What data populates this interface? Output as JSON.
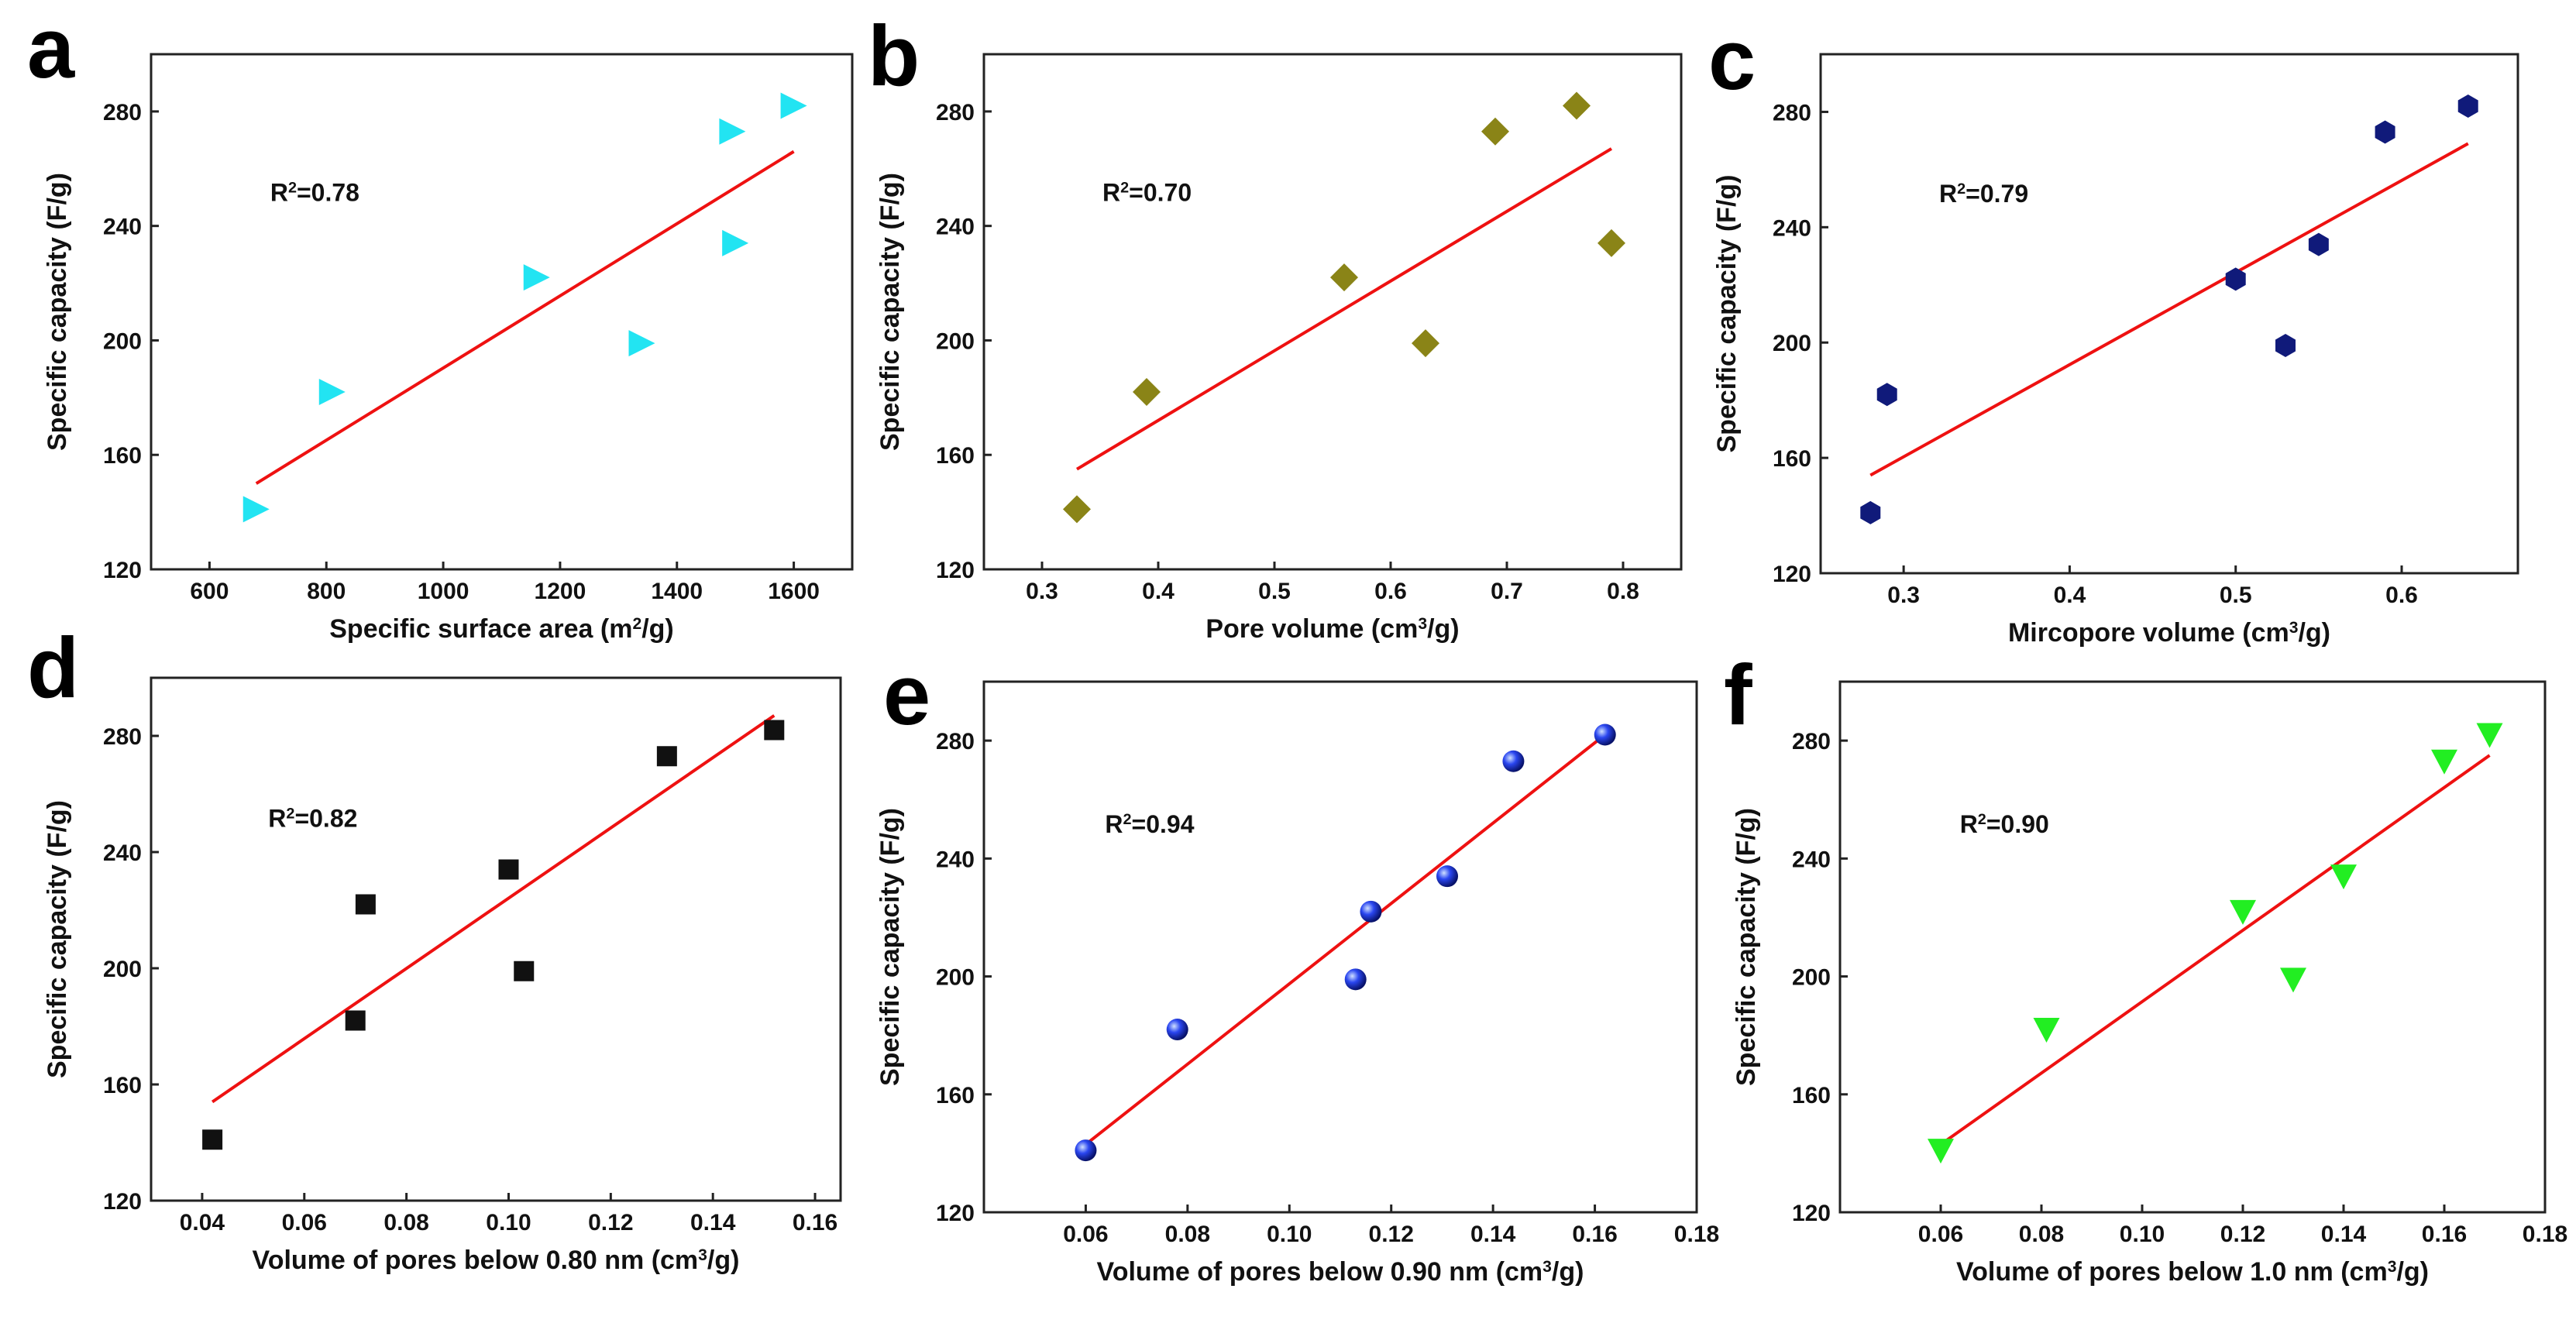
{
  "chart_data": [
    {
      "panel": "a",
      "type": "scatter",
      "marker": "triangle-right",
      "color": "#22e4f2",
      "xlabel": "Specific surface area (m{sup:2}/g)",
      "ylabel": "Specific capacity (F/g)",
      "annotation": "R{sup:2}=0.78",
      "xlim": [
        500,
        1700
      ],
      "ylim": [
        120,
        300
      ],
      "xticks": [
        "600",
        "800",
        "1000",
        "1200",
        "1400",
        "1600"
      ],
      "yticks": [
        "120",
        "160",
        "200",
        "240",
        "280"
      ],
      "points": [
        [
          680,
          141
        ],
        [
          810,
          182
        ],
        [
          1160,
          222
        ],
        [
          1340,
          199
        ],
        [
          1500,
          234
        ],
        [
          1495,
          273
        ],
        [
          1600,
          282
        ]
      ],
      "fit": [
        [
          680,
          150
        ],
        [
          1600,
          266
        ]
      ]
    },
    {
      "panel": "b",
      "type": "scatter",
      "marker": "diamond",
      "color": "#8a8417",
      "xlabel": "Pore volume (cm{sup:3}/g)",
      "ylabel": "Specific capacity (F/g)",
      "annotation": "R{sup:2}=0.70",
      "xlim": [
        0.25,
        0.85
      ],
      "ylim": [
        120,
        300
      ],
      "xticks": [
        "0.3",
        "0.4",
        "0.5",
        "0.6",
        "0.7",
        "0.8"
      ],
      "yticks": [
        "120",
        "160",
        "200",
        "240",
        "280"
      ],
      "points": [
        [
          0.33,
          141
        ],
        [
          0.39,
          182
        ],
        [
          0.56,
          222
        ],
        [
          0.63,
          199
        ],
        [
          0.69,
          273
        ],
        [
          0.76,
          282
        ],
        [
          0.79,
          234
        ]
      ],
      "fit": [
        [
          0.33,
          155
        ],
        [
          0.79,
          267
        ]
      ]
    },
    {
      "panel": "c",
      "type": "scatter",
      "marker": "hexagon",
      "color": "#101a7a",
      "xlabel": "Mircopore volume (cm{sup:3}/g)",
      "ylabel": "Specific capacity (F/g)",
      "annotation": "R{sup:2}=0.79",
      "xlim": [
        0.25,
        0.67
      ],
      "ylim": [
        120,
        300
      ],
      "xticks": [
        "0.3",
        "0.4",
        "0.5",
        "0.6"
      ],
      "yticks": [
        "120",
        "160",
        "200",
        "240",
        "280"
      ],
      "points": [
        [
          0.28,
          141
        ],
        [
          0.29,
          182
        ],
        [
          0.5,
          222
        ],
        [
          0.53,
          199
        ],
        [
          0.55,
          234
        ],
        [
          0.59,
          273
        ],
        [
          0.64,
          282
        ]
      ],
      "fit": [
        [
          0.28,
          154
        ],
        [
          0.64,
          269
        ]
      ]
    },
    {
      "panel": "d",
      "type": "scatter",
      "marker": "square",
      "color": "#111111",
      "xlabel": "Volume of pores below 0.80 nm (cm{sup:3}/g)",
      "ylabel": "Specific capacity (F/g)",
      "annotation": "R{sup:2}=0.82",
      "xlim": [
        0.03,
        0.165
      ],
      "ylim": [
        120,
        300
      ],
      "xticks": [
        "0.04",
        "0.06",
        "0.08",
        "0.10",
        "0.12",
        "0.14",
        "0.16"
      ],
      "yticks": [
        "120",
        "160",
        "200",
        "240",
        "280"
      ],
      "points": [
        [
          0.042,
          141
        ],
        [
          0.07,
          182
        ],
        [
          0.072,
          222
        ],
        [
          0.1,
          234
        ],
        [
          0.103,
          199
        ],
        [
          0.131,
          273
        ],
        [
          0.152,
          282
        ]
      ],
      "fit": [
        [
          0.042,
          154
        ],
        [
          0.152,
          287
        ]
      ]
    },
    {
      "panel": "e",
      "type": "scatter",
      "marker": "sphere",
      "color": "#1a2ee8",
      "xlabel": "Volume of pores below 0.90 nm (cm{sup:3}/g)",
      "ylabel": "Specific capacity (F/g)",
      "annotation": "R{sup:2}=0.94",
      "xlim": [
        0.04,
        0.18
      ],
      "ylim": [
        120,
        300
      ],
      "xticks": [
        "0.06",
        "0.08",
        "0.10",
        "0.12",
        "0.14",
        "0.16",
        "0.18"
      ],
      "yticks": [
        "120",
        "160",
        "200",
        "240",
        "280"
      ],
      "points": [
        [
          0.06,
          141
        ],
        [
          0.078,
          182
        ],
        [
          0.113,
          199
        ],
        [
          0.116,
          222
        ],
        [
          0.131,
          234
        ],
        [
          0.144,
          273
        ],
        [
          0.162,
          282
        ]
      ],
      "fit": [
        [
          0.06,
          143
        ],
        [
          0.162,
          282
        ]
      ]
    },
    {
      "panel": "f",
      "type": "scatter",
      "marker": "triangle-down",
      "color": "#22ee22",
      "xlabel": "Volume of pores below 1.0 nm (cm{sup:3}/g)",
      "ylabel": "Specific capacity (F/g)",
      "annotation": "R{sup:2}=0.90",
      "xlim": [
        0.04,
        0.18
      ],
      "ylim": [
        120,
        300
      ],
      "xticks": [
        "0.06",
        "0.08",
        "0.10",
        "0.12",
        "0.14",
        "0.16",
        "0.18"
      ],
      "yticks": [
        "120",
        "160",
        "200",
        "240",
        "280"
      ],
      "points": [
        [
          0.06,
          141
        ],
        [
          0.081,
          182
        ],
        [
          0.12,
          222
        ],
        [
          0.13,
          199
        ],
        [
          0.14,
          234
        ],
        [
          0.16,
          273
        ],
        [
          0.169,
          282
        ]
      ],
      "fit": [
        [
          0.06,
          143
        ],
        [
          0.169,
          275
        ]
      ]
    }
  ]
}
